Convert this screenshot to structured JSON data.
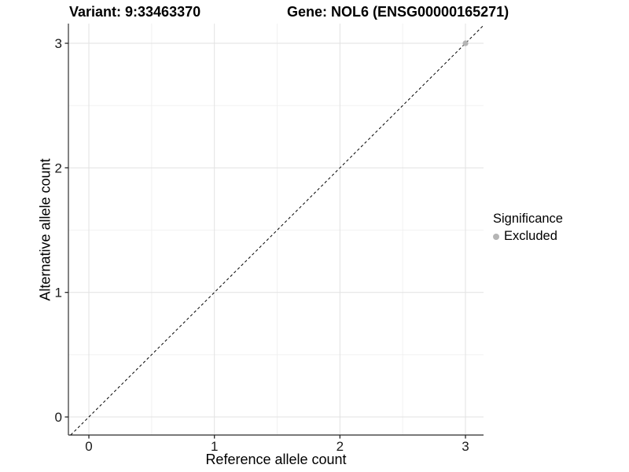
{
  "titles": {
    "variant": "Variant: 9:33463370",
    "gene": "Gene: NOL6 (ENSG00000165271)"
  },
  "axes": {
    "x_label": "Reference allele count",
    "y_label": "Alternative allele count"
  },
  "legend": {
    "title": "Significance",
    "items": [
      {
        "label": "Excluded",
        "color": "#b5b5b5"
      }
    ]
  },
  "chart_data": {
    "type": "scatter",
    "title": "Variant: 9:33463370   Gene: NOL6 (ENSG00000165271)",
    "xlabel": "Reference allele count",
    "ylabel": "Alternative allele count",
    "xlim": [
      -0.163,
      3.144
    ],
    "ylim": [
      -0.145,
      3.158
    ],
    "x_ticks": [
      0,
      1,
      2,
      3
    ],
    "y_ticks": [
      0,
      1,
      2,
      3
    ],
    "minor_gridlines": [
      0.5,
      1.5,
      2.5
    ],
    "grid": "on",
    "legend_position": "right",
    "series": [
      {
        "name": "Excluded",
        "color": "#b5b5b5",
        "points": [
          {
            "x": 3,
            "y": 3
          }
        ]
      }
    ],
    "reference_line": {
      "slope": 1,
      "intercept": 0,
      "style": "dashed",
      "color": "#000000"
    }
  },
  "style": {
    "background": "#ffffff",
    "grid_major": "#e2e2e2",
    "grid_minor": "#f0f0f0",
    "axis_line": "#4d4d4d",
    "tick_color": "#262626",
    "tick_label_color": "#1a1a1a",
    "point_color": "#b5b5b5",
    "dash_color": "#000000"
  }
}
